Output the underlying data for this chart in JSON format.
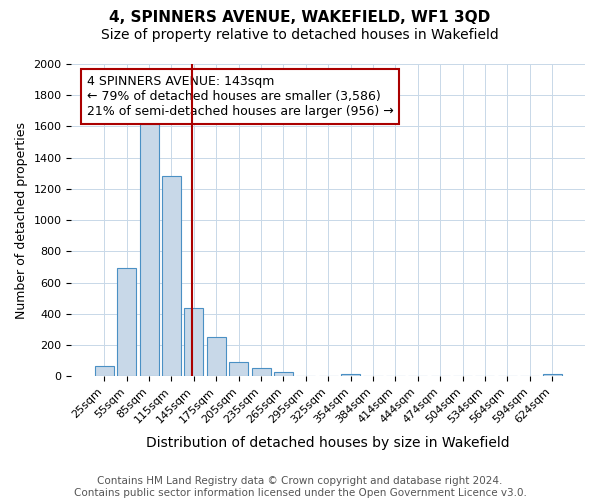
{
  "title": "4, SPINNERS AVENUE, WAKEFIELD, WF1 3QD",
  "subtitle": "Size of property relative to detached houses in Wakefield",
  "xlabel": "Distribution of detached houses by size in Wakefield",
  "ylabel": "Number of detached properties",
  "bar_labels": [
    "25sqm",
    "55sqm",
    "85sqm",
    "115sqm",
    "145sqm",
    "175sqm",
    "205sqm",
    "235sqm",
    "265sqm",
    "295sqm",
    "325sqm",
    "354sqm",
    "384sqm",
    "414sqm",
    "444sqm",
    "474sqm",
    "504sqm",
    "534sqm",
    "564sqm",
    "594sqm",
    "624sqm"
  ],
  "bar_values": [
    65,
    690,
    1635,
    1285,
    435,
    250,
    90,
    50,
    25,
    0,
    0,
    15,
    0,
    0,
    0,
    0,
    0,
    0,
    0,
    0,
    15
  ],
  "bar_color": "#c8d8e8",
  "bar_edge_color": "#4a90c4",
  "vline_pos": 3.925,
  "vline_color": "#aa0000",
  "ylim": [
    0,
    2000
  ],
  "annotation_text": "4 SPINNERS AVENUE: 143sqm\n← 79% of detached houses are smaller (3,586)\n21% of semi-detached houses are larger (956) →",
  "annotation_box_edge": "#aa0000",
  "footer_text": "Contains HM Land Registry data © Crown copyright and database right 2024.\nContains public sector information licensed under the Open Government Licence v3.0.",
  "title_fontsize": 11,
  "subtitle_fontsize": 10,
  "xlabel_fontsize": 10,
  "ylabel_fontsize": 9,
  "tick_fontsize": 8,
  "annotation_fontsize": 9,
  "footer_fontsize": 7.5,
  "background_color": "#ffffff",
  "grid_color": "#c8d8e8"
}
